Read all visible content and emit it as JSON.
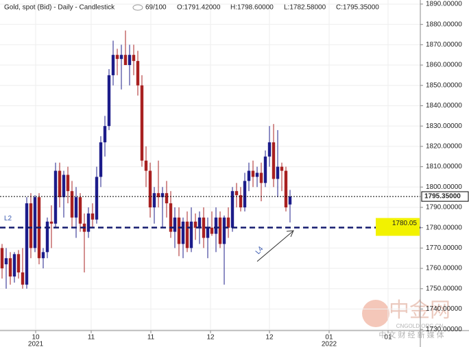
{
  "chart_data": {
    "type": "candlestick",
    "title": "Gold, spot (Bid) - Daily - Candlestick",
    "counter": "69/100",
    "ohlc_labels": [
      "O:1791.42000",
      "H:1798.60000",
      "L:1782.58000",
      "C:1795.35000"
    ],
    "x": [
      0,
      1,
      2,
      3,
      4,
      5,
      6,
      7,
      8,
      9,
      10,
      11,
      12,
      13,
      14,
      15,
      16,
      17,
      18,
      19,
      20,
      21,
      22,
      23,
      24,
      25,
      26,
      27,
      28,
      29,
      30,
      31,
      32,
      33,
      34,
      35,
      36,
      37,
      38,
      39,
      40,
      41,
      42,
      43,
      44,
      45,
      46,
      47,
      48,
      49,
      50,
      51,
      52,
      53,
      54,
      55,
      56,
      57,
      58,
      59,
      60,
      61,
      62,
      63,
      64,
      65,
      66,
      67,
      68,
      69,
      70
    ],
    "open": [
      1770,
      1762,
      1765,
      1756,
      1767,
      1758,
      1752,
      1792,
      1770,
      1795,
      1765,
      1768,
      1783,
      1782,
      1808,
      1795,
      1806,
      1798,
      1785,
      1795,
      1782,
      1778,
      1787,
      1784,
      1805,
      1822,
      1830,
      1855,
      1865,
      1863,
      1865,
      1860,
      1865,
      1862,
      1850,
      1813,
      1808,
      1790,
      1797,
      1795,
      1797,
      1792,
      1778,
      1785,
      1772,
      1783,
      1770,
      1783,
      1780,
      1785,
      1775,
      1780,
      1777,
      1785,
      1772,
      1785,
      1780,
      1798,
      1796,
      1790,
      1803,
      1808,
      1805,
      1807,
      1802,
      1815,
      1822,
      1804,
      1810,
      1808,
      1791.42
    ],
    "high": [
      1772,
      1770,
      1768,
      1768,
      1769,
      1770,
      1795,
      1797,
      1796,
      1797,
      1770,
      1785,
      1791,
      1812,
      1812,
      1808,
      1810,
      1803,
      1800,
      1797,
      1787,
      1790,
      1792,
      1810,
      1825,
      1835,
      1858,
      1872,
      1868,
      1870,
      1877,
      1870,
      1870,
      1867,
      1855,
      1820,
      1812,
      1800,
      1813,
      1800,
      1803,
      1798,
      1790,
      1790,
      1785,
      1788,
      1790,
      1787,
      1788,
      1790,
      1785,
      1788,
      1790,
      1788,
      1786,
      1790,
      1800,
      1802,
      1800,
      1807,
      1812,
      1813,
      1810,
      1812,
      1818,
      1830,
      1831,
      1828,
      1812,
      1810,
      1798.6
    ],
    "low": [
      1755,
      1750,
      1752,
      1753,
      1755,
      1750,
      1750,
      1765,
      1768,
      1762,
      1760,
      1765,
      1770,
      1780,
      1790,
      1785,
      1792,
      1780,
      1775,
      1778,
      1758,
      1775,
      1780,
      1782,
      1800,
      1815,
      1828,
      1850,
      1855,
      1848,
      1860,
      1850,
      1855,
      1845,
      1810,
      1800,
      1785,
      1782,
      1790,
      1780,
      1785,
      1775,
      1770,
      1766,
      1765,
      1768,
      1768,
      1774,
      1772,
      1770,
      1765,
      1776,
      1768,
      1770,
      1752,
      1775,
      1778,
      1790,
      1788,
      1788,
      1798,
      1800,
      1800,
      1793,
      1800,
      1810,
      1800,
      1795,
      1798,
      1788,
      1782.58
    ],
    "close": [
      1760,
      1765,
      1756,
      1767,
      1758,
      1752,
      1792,
      1770,
      1795,
      1765,
      1768,
      1783,
      1782,
      1808,
      1795,
      1806,
      1798,
      1785,
      1795,
      1782,
      1778,
      1787,
      1784,
      1805,
      1822,
      1830,
      1855,
      1865,
      1863,
      1865,
      1860,
      1865,
      1862,
      1850,
      1813,
      1808,
      1790,
      1797,
      1795,
      1797,
      1792,
      1778,
      1785,
      1772,
      1783,
      1770,
      1783,
      1780,
      1785,
      1775,
      1780,
      1777,
      1785,
      1772,
      1785,
      1780,
      1798,
      1796,
      1790,
      1803,
      1808,
      1805,
      1807,
      1802,
      1815,
      1822,
      1804,
      1810,
      1808,
      1790,
      1795.35
    ],
    "up_color": "#1c1c8a",
    "down_color": "#a82020",
    "ylim": [
      1729.4,
      1892
    ],
    "yticks": [
      {
        "value": 1730,
        "label": "1730.00000"
      },
      {
        "value": 1740,
        "label": "1740.00000"
      },
      {
        "value": 1750,
        "label": "1750.00000"
      },
      {
        "value": 1760,
        "label": "1760.00000"
      },
      {
        "value": 1770,
        "label": "1770.00000"
      },
      {
        "value": 1780,
        "label": "1780.00000"
      },
      {
        "value": 1790,
        "label": "1790.00000"
      },
      {
        "value": 1800,
        "label": "1800.00000"
      },
      {
        "value": 1810,
        "label": "1810.00000"
      },
      {
        "value": 1820,
        "label": "1820.00000"
      },
      {
        "value": 1830,
        "label": "1830.00000"
      },
      {
        "value": 1840,
        "label": "1840.00000"
      },
      {
        "value": 1850,
        "label": "1850.00000"
      },
      {
        "value": 1860,
        "label": "1860.00000"
      },
      {
        "value": 1870,
        "label": "1870.00000"
      },
      {
        "value": 1880,
        "label": "1880.00000"
      },
      {
        "value": 1890,
        "label": "1890.00000"
      }
    ],
    "xlim": [
      -0.5,
      101.67
    ],
    "xticks": [
      {
        "value": 8.17,
        "label": "10"
      },
      {
        "value": 21.67,
        "label": "11"
      },
      {
        "value": 36.17,
        "label": "11"
      },
      {
        "value": 50.67,
        "label": "12"
      },
      {
        "value": 65,
        "label": "12"
      },
      {
        "value": 79.5,
        "label": "01"
      },
      {
        "value": 93.83,
        "label": "01"
      }
    ],
    "x_year_labels": [
      {
        "value": 8.17,
        "label": "2021"
      },
      {
        "value": 79.5,
        "label": "2022"
      }
    ],
    "grid": true,
    "last_price": {
      "value": 1795.35,
      "label": "1795.35000"
    },
    "level_line": {
      "name": "L2",
      "value": 1780.05,
      "label": "1780.05"
    },
    "trend_label": "L4"
  },
  "watermark": {
    "brand": "中金网",
    "site": "CNGOLD.ORG.CN",
    "slogan": "中 文 财 经 新 媒 体"
  }
}
